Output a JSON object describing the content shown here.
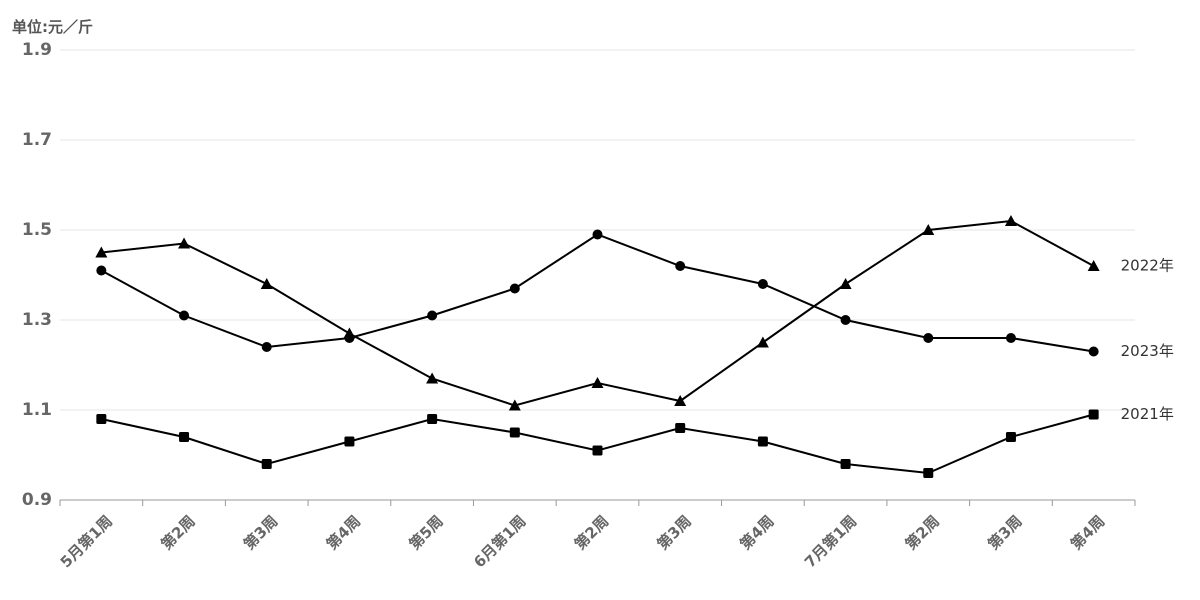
{
  "chart_data": {
    "type": "line",
    "y_label": "单位:元／斤",
    "categories": [
      "5月第1周",
      "第2周",
      "第3周",
      "第4周",
      "第5周",
      "6月第1周",
      "第2周",
      "第3周",
      "第4周",
      "7月第1周",
      "第2周",
      "第3周",
      "第4周"
    ],
    "series": [
      {
        "name": "2022年",
        "color": "#000000",
        "marker": "triangle",
        "values": [
          1.45,
          1.47,
          1.38,
          1.27,
          1.17,
          1.11,
          1.16,
          1.12,
          1.25,
          1.38,
          1.5,
          1.52,
          1.42
        ]
      },
      {
        "name": "2023年",
        "color": "#000000",
        "marker": "circle",
        "values": [
          1.41,
          1.31,
          1.24,
          1.26,
          1.31,
          1.37,
          1.49,
          1.42,
          1.38,
          1.3,
          1.26,
          1.26,
          1.23
        ]
      },
      {
        "name": "2021年",
        "color": "#000000",
        "marker": "square",
        "values": [
          1.08,
          1.04,
          0.98,
          1.03,
          1.08,
          1.05,
          1.01,
          1.06,
          1.03,
          0.98,
          0.96,
          1.04,
          1.09
        ]
      }
    ],
    "ylim": [
      0.9,
      1.9
    ],
    "yticks": [
      0.9,
      1.1,
      1.3,
      1.5,
      1.7,
      1.9
    ],
    "grid": true
  }
}
